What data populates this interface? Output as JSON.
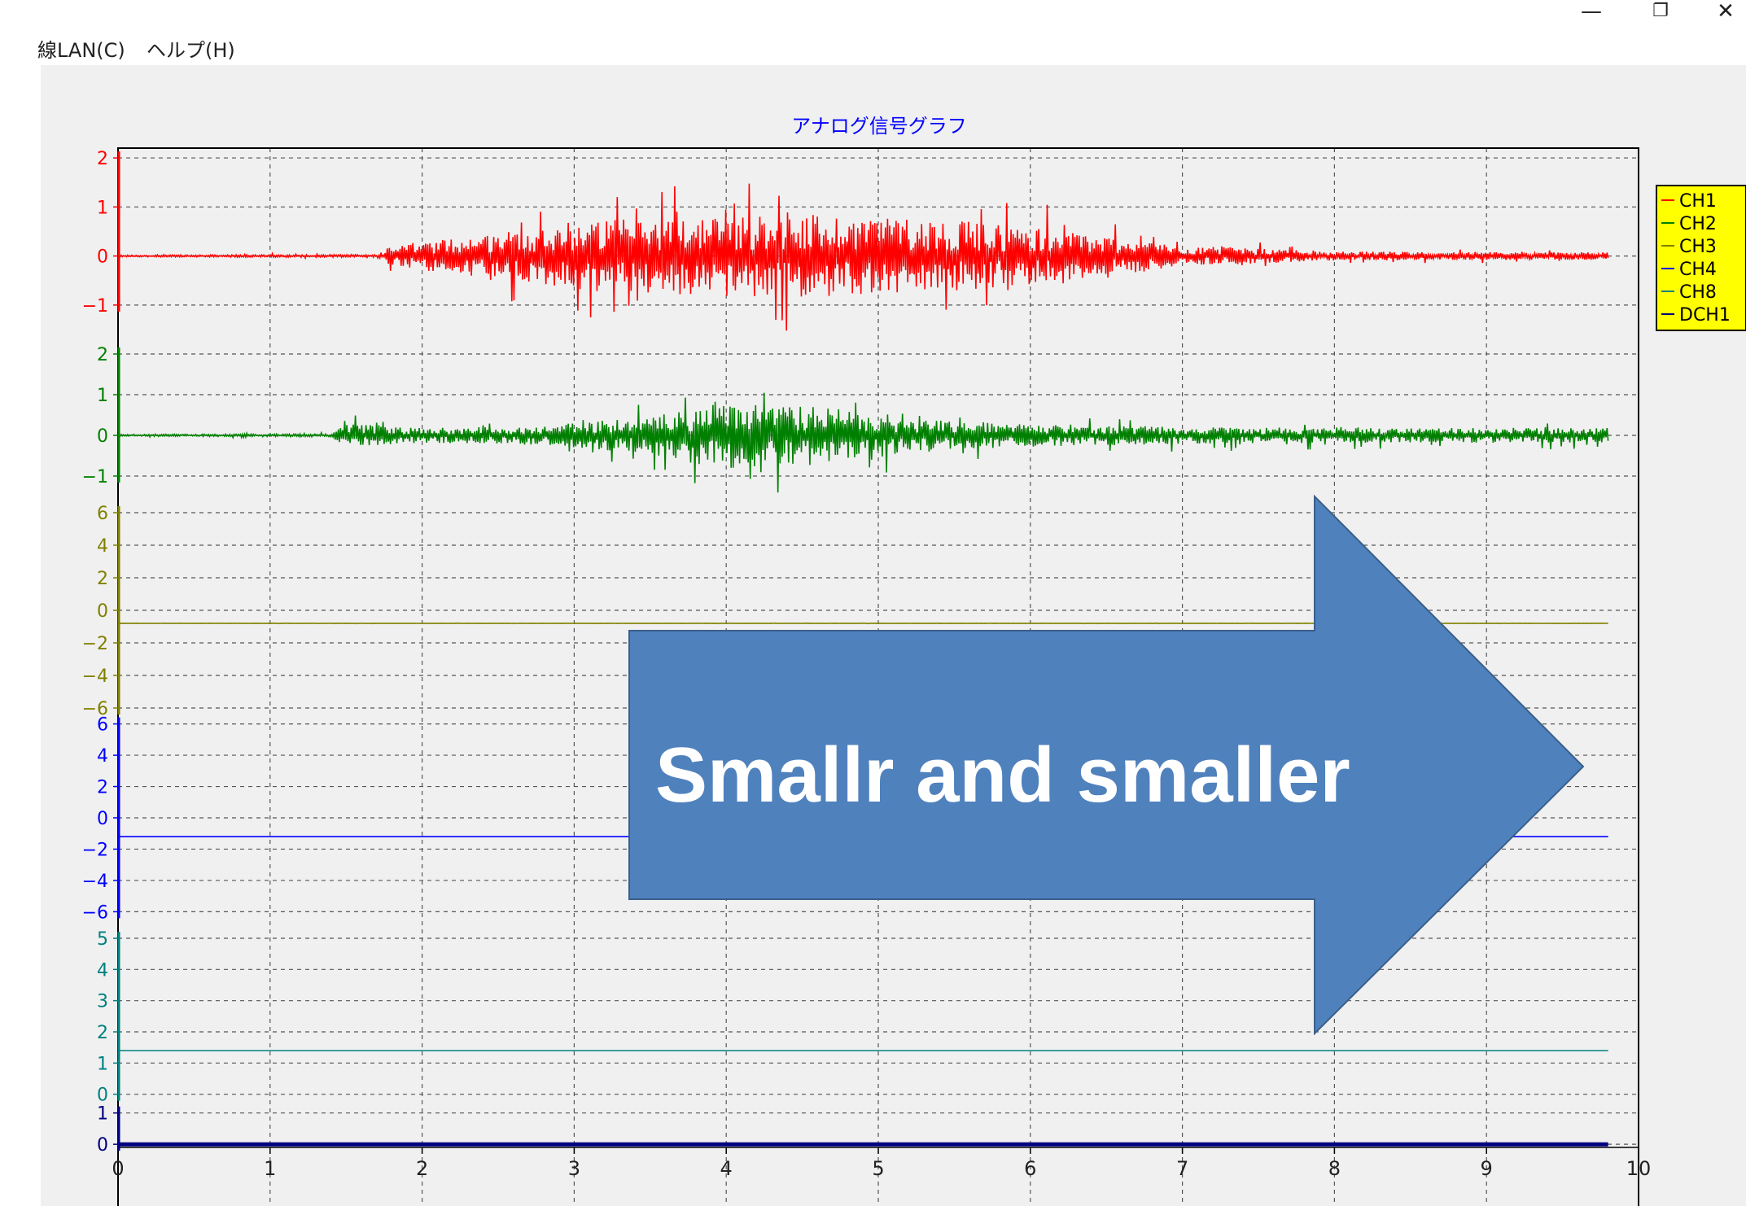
{
  "window": {
    "minimize_glyph": "—",
    "restore_glyph": "❐",
    "close_glyph": "✕"
  },
  "menu": {
    "items": [
      {
        "label": "線LAN(C)"
      },
      {
        "label": "ヘルプ(H)"
      }
    ]
  },
  "overlay": {
    "arrow_text": "Smallr and smaller",
    "arrow_color": "#4f81bd"
  },
  "chart_data": {
    "type": "line",
    "title": "アナログ信号グラフ",
    "title_color": "#0000ff",
    "xlabel": "",
    "xlim": [
      0,
      10
    ],
    "x_ticks": [
      "0",
      "1",
      "2",
      "3",
      "4",
      "5",
      "6",
      "7",
      "8",
      "9",
      "10"
    ],
    "grid": true,
    "legend_position": "top-right",
    "legend_background": "#ffff00",
    "series": [
      {
        "name": "CH1",
        "color": "#ff0000",
        "ylim": [
          -1.5,
          2.2
        ],
        "ticks": [
          "2",
          "1",
          "0",
          "−1"
        ],
        "tick_values": [
          2,
          1,
          0,
          -1
        ],
        "baseline": 0,
        "envelope": [
          [
            0,
            0.03
          ],
          [
            1.7,
            0.05
          ],
          [
            1.8,
            0.35
          ],
          [
            2.5,
            0.8
          ],
          [
            3.0,
            1.2
          ],
          [
            4.0,
            1.4
          ],
          [
            5.0,
            1.4
          ],
          [
            6.0,
            1.0
          ],
          [
            7.0,
            0.35
          ],
          [
            8.0,
            0.15
          ],
          [
            9.8,
            0.12
          ]
        ],
        "x_end": 9.8
      },
      {
        "name": "CH2",
        "color": "#008000",
        "ylim": [
          -1.7,
          2.6
        ],
        "ticks": [
          "2",
          "1",
          "0",
          "−1"
        ],
        "tick_values": [
          2,
          1,
          0,
          -1
        ],
        "baseline": 0,
        "envelope": [
          [
            0,
            0.04
          ],
          [
            1.4,
            0.06
          ],
          [
            1.5,
            0.5
          ],
          [
            2.0,
            0.3
          ],
          [
            2.6,
            0.35
          ],
          [
            3.0,
            0.5
          ],
          [
            3.5,
            0.8
          ],
          [
            4.0,
            1.4
          ],
          [
            4.5,
            1.2
          ],
          [
            5.0,
            0.9
          ],
          [
            5.5,
            0.6
          ],
          [
            6.0,
            0.45
          ],
          [
            7.0,
            0.35
          ],
          [
            8.0,
            0.3
          ],
          [
            9.8,
            0.3
          ]
        ],
        "x_end": 9.8
      },
      {
        "name": "CH3",
        "color": "#808000",
        "ylim": [
          -6.5,
          6.5
        ],
        "ticks": [
          "6",
          "4",
          "2",
          "0",
          "−2",
          "−4",
          "−6"
        ],
        "tick_values": [
          6,
          4,
          2,
          0,
          -2,
          -4,
          -6
        ],
        "baseline": -0.8,
        "envelope": [
          [
            0,
            0.02
          ],
          [
            9.8,
            0.02
          ]
        ],
        "x_end": 9.8
      },
      {
        "name": "CH4",
        "color": "#0000ff",
        "ylim": [
          -6.5,
          6.5
        ],
        "ticks": [
          "6",
          "4",
          "2",
          "0",
          "−2",
          "−4",
          "−6"
        ],
        "tick_values": [
          6,
          4,
          2,
          0,
          -2,
          -4,
          -6
        ],
        "baseline": -1.2,
        "envelope": [
          [
            0,
            0
          ],
          [
            9.8,
            0
          ]
        ],
        "x_end": 9.8
      },
      {
        "name": "CH8",
        "color": "#008080",
        "ylim": [
          -0.4,
          5.6
        ],
        "ticks": [
          "5",
          "4",
          "3",
          "2",
          "1",
          "0"
        ],
        "tick_values": [
          5,
          4,
          3,
          2,
          1,
          0
        ],
        "baseline": 1.4,
        "envelope": [
          [
            0,
            0
          ],
          [
            9.8,
            0
          ]
        ],
        "x_end": 9.8
      },
      {
        "name": "DCH1",
        "color": "#000080",
        "ylim": [
          -0.1,
          1.2
        ],
        "ticks": [
          "1",
          "0"
        ],
        "tick_values": [
          1,
          0
        ],
        "baseline": 0,
        "envelope": [
          [
            0,
            0
          ],
          [
            9.8,
            0
          ]
        ],
        "x_end": 9.8
      }
    ]
  }
}
